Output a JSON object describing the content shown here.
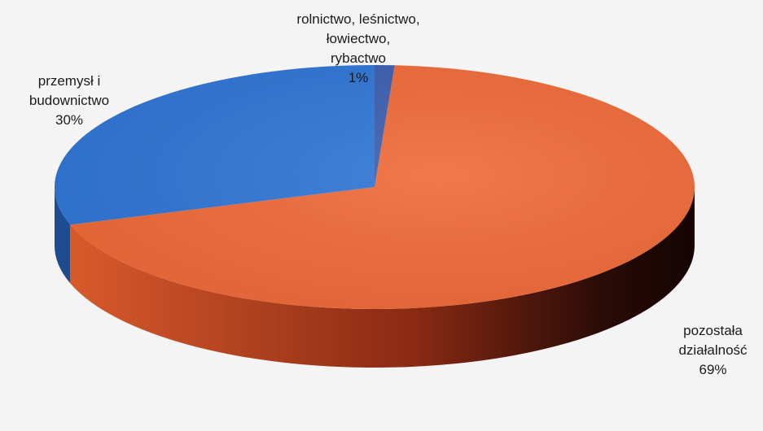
{
  "chart_data": {
    "type": "pie",
    "style": "3d",
    "categories": [
      "rolnictwo, leśnictwo, łowiectwo, rybactwo",
      "pozostała działalność",
      "przemysł i budownictwo"
    ],
    "values": [
      1,
      69,
      30
    ],
    "colors": [
      "#3c5fb0",
      "#ef6a38",
      "#2f76d6"
    ],
    "side_colors": [
      "#2a3f78",
      "#c24a22",
      "#1d4c90"
    ],
    "labels": [
      {
        "lines": [
          "rolnictwo, leśnictwo,",
          "łowiectwo,",
          "rybactwo",
          "1%"
        ]
      },
      {
        "lines": [
          "pozostała",
          "działalność",
          "69%"
        ]
      },
      {
        "lines": [
          "przemysł i",
          "budownictwo",
          "30%"
        ]
      }
    ]
  }
}
